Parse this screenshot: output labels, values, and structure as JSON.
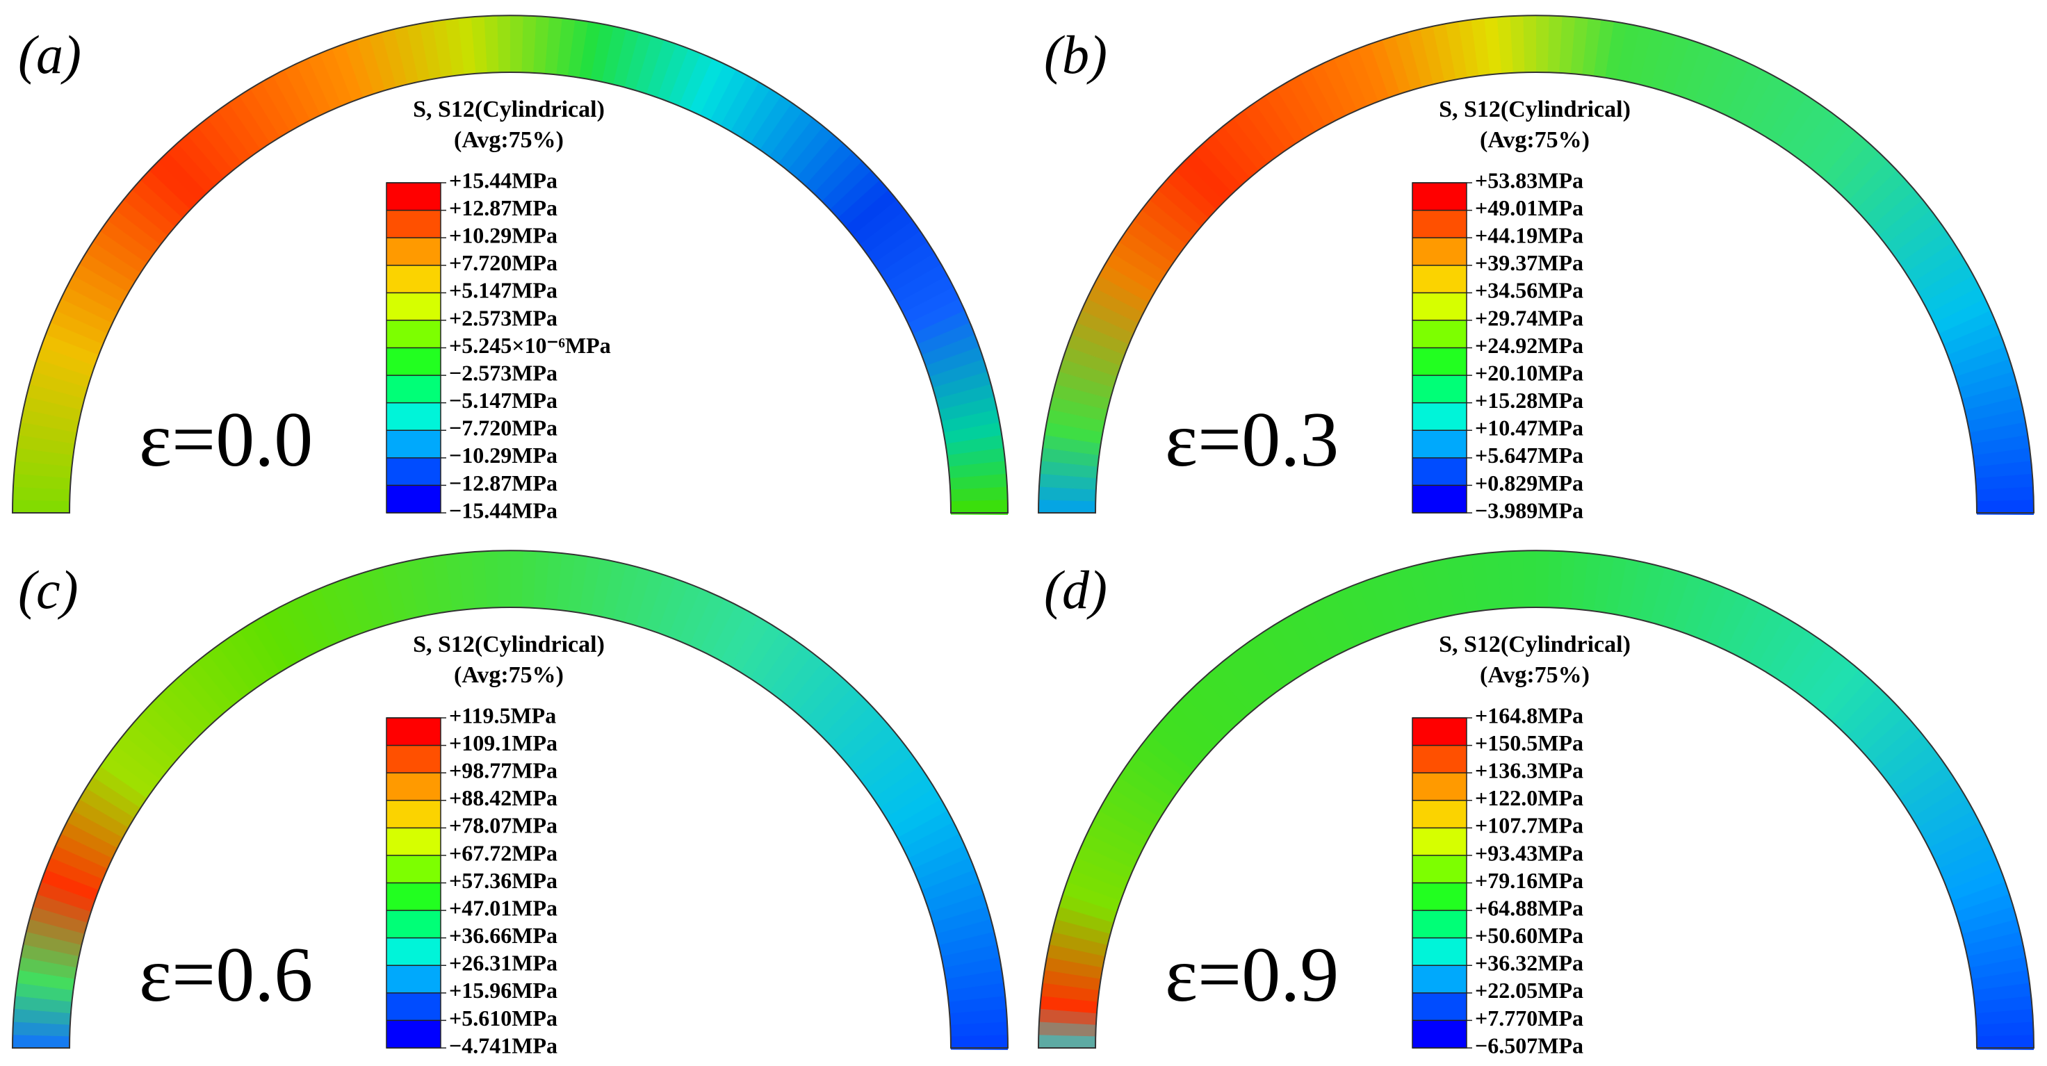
{
  "panels": [
    {
      "label": "(a)",
      "strain": "ε=0.0",
      "legend": {
        "title": "S, S12(Cylindrical)",
        "subtitle": "(Avg:75%)",
        "labels": [
          "+15.44MPa",
          "+12.87MPa",
          "+10.29MPa",
          "+7.720MPa",
          "+5.147MPa",
          "+2.573MPa",
          "+5.245×10⁻⁶MPa",
          "−2.573MPa",
          "−5.147MPa",
          "−7.720MPa",
          "−10.29MPa",
          "−12.87MPa",
          "−15.44MPa"
        ]
      }
    },
    {
      "label": "(b)",
      "strain": "ε=0.3",
      "legend": {
        "title": "S, S12(Cylindrical)",
        "subtitle": "(Avg:75%)",
        "labels": [
          "+53.83MPa",
          "+49.01MPa",
          "+44.19MPa",
          "+39.37MPa",
          "+34.56MPa",
          "+29.74MPa",
          "+24.92MPa",
          "+20.10MPa",
          "+15.28MPa",
          "+10.47MPa",
          "+5.647MPa",
          "+0.829MPa",
          "−3.989MPa"
        ]
      }
    },
    {
      "label": "(c)",
      "strain": "ε=0.6",
      "legend": {
        "title": "S, S12(Cylindrical)",
        "subtitle": "(Avg:75%)",
        "labels": [
          "+119.5MPa",
          "+109.1MPa",
          "+98.77MPa",
          "+88.42MPa",
          "+78.07MPa",
          "+67.72MPa",
          "+57.36MPa",
          "+47.01MPa",
          "+36.66MPa",
          "+26.31MPa",
          "+15.96MPa",
          "+5.610MPa",
          "−4.741MPa"
        ]
      }
    },
    {
      "label": "(d)",
      "strain": "ε=0.9",
      "legend": {
        "title": "S, S12(Cylindrical)",
        "subtitle": "(Avg:75%)",
        "labels": [
          "+164.8MPa",
          "+150.5MPa",
          "+136.3MPa",
          "+122.0MPa",
          "+107.7MPa",
          "+93.43MPa",
          "+79.16MPa",
          "+64.88MPa",
          "+50.60MPa",
          "+36.32MPa",
          "+22.05MPa",
          "+7.770MPa",
          "−6.507MPa"
        ]
      }
    }
  ]
}
